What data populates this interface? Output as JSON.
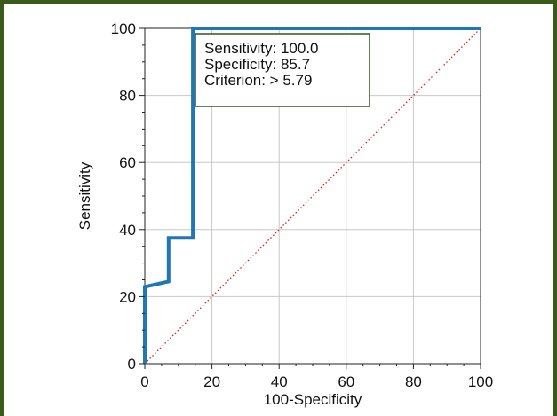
{
  "colors": {
    "frame": "#3a5a1a",
    "roc_line": "#1f77b4",
    "diagonal": "#e02020",
    "grid": "#c8c8c8",
    "annotation_border": "#2e5a1c"
  },
  "chart_data": {
    "type": "line",
    "xlabel": "100-Specificity",
    "ylabel": "Sensitivity",
    "xlim": [
      0,
      100
    ],
    "ylim": [
      0,
      100
    ],
    "x_ticks": [
      "0",
      "20",
      "40",
      "60",
      "80",
      "100"
    ],
    "y_ticks": [
      "0",
      "20",
      "40",
      "60",
      "80",
      "100"
    ],
    "grid": true,
    "series": [
      {
        "x": [
          0,
          0,
          7.1,
          7.1,
          14.3,
          14.3,
          100
        ],
        "y": [
          0,
          22.9,
          24.5,
          37.5,
          37.5,
          100,
          100
        ]
      },
      {
        "style": "dotted",
        "x": [
          0,
          100
        ],
        "y": [
          0,
          100
        ]
      }
    ],
    "annotation": {
      "lines": [
        "Sensitivity: 100.0",
        "Specificity: 85.7",
        "Criterion: > 5.79"
      ]
    }
  }
}
